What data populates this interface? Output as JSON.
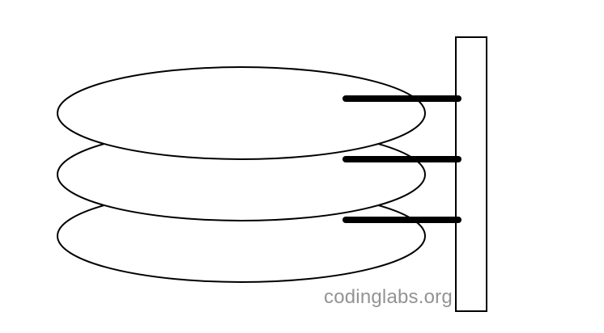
{
  "diagram": {
    "watermark_text": "codinglabs.org",
    "colors": {
      "background": "#ffffff",
      "stroke": "#000000",
      "watermark": "#8e8e8e"
    },
    "platter_count": 3,
    "arm_count": 3
  }
}
